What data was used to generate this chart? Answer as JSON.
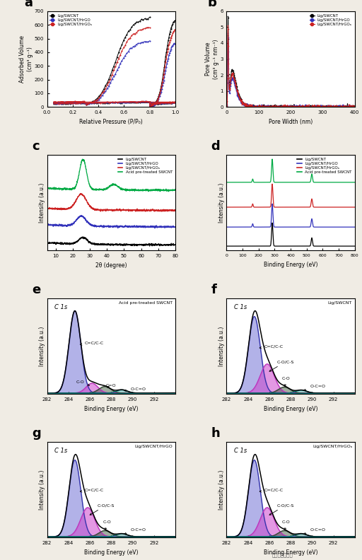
{
  "panel_a": {
    "title": "a",
    "xlabel": "Relative Pressure (P/P₀)",
    "ylabel": "Adsorbed Volume\n(cm³ g⁻¹)",
    "xlim": [
      0.0,
      1.0
    ],
    "ylim": [
      0,
      700
    ],
    "yticks": [
      0,
      100,
      200,
      300,
      400,
      500,
      600,
      700
    ],
    "xticks": [
      0.0,
      0.2,
      0.4,
      0.6,
      0.8,
      1.0
    ],
    "legend": [
      "Lig/SWCNT",
      "Lig/SWCNT/HrGO",
      "Lig/SWCNT/HrGOₐ"
    ],
    "colors": [
      "#000000",
      "#3333bb",
      "#cc2222"
    ]
  },
  "panel_b": {
    "title": "b",
    "xlabel": "Pore Width (nm)",
    "ylabel": "Pore Volume\n(cm³ g⁻¹ nm⁻¹)",
    "xlim": [
      0,
      400
    ],
    "ylim": [
      0,
      6
    ],
    "yticks": [
      0,
      1,
      2,
      3,
      4,
      5,
      6
    ],
    "xticks": [
      0,
      100,
      200,
      300,
      400
    ],
    "legend": [
      "Lig/SWCNT",
      "Lig/SWCNT/HrGO",
      "Lig/SWCNT/HrGOₐ"
    ],
    "colors": [
      "#000000",
      "#3333bb",
      "#cc2222"
    ]
  },
  "panel_c": {
    "title": "c",
    "xlabel": "2θ (degree)",
    "ylabel": "Intensity (a.u.)",
    "xlim": [
      5,
      80
    ],
    "xticks": [
      10,
      20,
      30,
      40,
      50,
      60,
      70,
      80
    ],
    "legend": [
      "Lig/SWCNT",
      "Lig/SWCNT/HrGO",
      "Lig/SWCNT/HrGOₐ",
      "Acid pre-treated SWCNT"
    ],
    "colors": [
      "#000000",
      "#3333bb",
      "#cc2222",
      "#00aa44"
    ]
  },
  "panel_d": {
    "title": "d",
    "xlabel": "Binding Energy (eV)",
    "ylabel": "Intensity (a.u.)",
    "xlim": [
      0,
      800
    ],
    "xticks": [
      0,
      100,
      200,
      300,
      400,
      500,
      600,
      700,
      800
    ],
    "legend": [
      "Lig/SWCNT",
      "Lig/SWCNT/HrGO",
      "Lig/SWCNT/HrGOₐ",
      "Acid pre-treated SWCNT"
    ],
    "colors": [
      "#000000",
      "#3333bb",
      "#cc2222",
      "#00aa44"
    ]
  },
  "panel_e": {
    "title": "e",
    "label": "C 1s",
    "sublabel": "Acid pre-treated SWCNT",
    "xlabel": "Binding Energy (eV)",
    "ylabel": "Intensity (a.u.)",
    "xlim": [
      282,
      294
    ],
    "xticks": [
      282,
      284,
      286,
      288,
      290,
      292
    ],
    "annotations": [
      "C=C/C-C",
      "C-O",
      "C=O",
      "O-C=O"
    ],
    "has_cs": false
  },
  "panel_f": {
    "title": "f",
    "label": "C 1s",
    "sublabel": "Lig/SWCNT",
    "xlabel": "Binding Energy (eV)",
    "ylabel": "Intensity (a.u.)",
    "xlim": [
      282,
      294
    ],
    "xticks": [
      282,
      284,
      286,
      288,
      290,
      292
    ],
    "annotations": [
      "C=C/C-C",
      "C-O/C-S",
      "C-O",
      "O-C=O"
    ],
    "has_cs": true
  },
  "panel_g": {
    "title": "g",
    "label": "C 1s",
    "sublabel": "Lig/SWCNT/HrGO",
    "xlabel": "Binding Energy (eV)",
    "ylabel": "Intensity (a.u.)",
    "xlim": [
      282,
      294
    ],
    "xticks": [
      282,
      284,
      286,
      288,
      290,
      292
    ],
    "annotations": [
      "C=C/C-C",
      "C-O/C-S",
      "C-O",
      "O-C=O"
    ],
    "has_cs": true
  },
  "panel_h": {
    "title": "h",
    "label": "C 1s",
    "sublabel": "Lig/SWCNT/HrGOₐ",
    "xlabel": "Binding Energy (eV)",
    "ylabel": "Intensity (a.u.)",
    "xlim": [
      282,
      294
    ],
    "xticks": [
      282,
      284,
      286,
      288,
      290,
      292
    ],
    "annotations": [
      "C=C/C-C",
      "C-O/C-S",
      "C-O",
      "O-C=O"
    ],
    "has_cs": true
  },
  "bg_color": "#f0ece4",
  "plot_bg": "#ffffff",
  "watermark": "材料分析与应用"
}
